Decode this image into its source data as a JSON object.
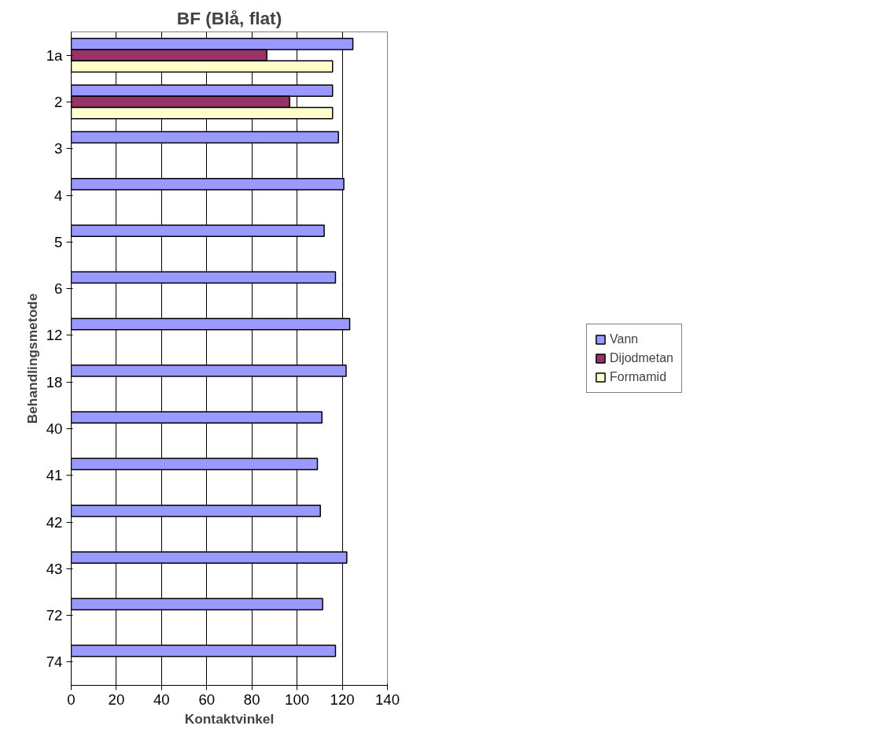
{
  "chart_data": {
    "type": "bar",
    "orientation": "horizontal",
    "title": "BF (Blå, flat)",
    "xlabel": "Kontaktvinkel",
    "ylabel": "Behandlingsmetode",
    "categories": [
      "1a",
      "2",
      "3",
      "4",
      "5",
      "6",
      "12",
      "18",
      "40",
      "41",
      "42",
      "43",
      "72",
      "74"
    ],
    "series": [
      {
        "name": "Vann",
        "color": "#9999ff",
        "values": [
          124.7,
          115.7,
          118.3,
          120.7,
          112.0,
          117.0,
          123.3,
          121.7,
          111.0,
          109.0,
          110.3,
          122.0,
          111.3,
          117.0
        ]
      },
      {
        "name": "Dijodmetan",
        "color": "#993366",
        "values": [
          86.6,
          96.7,
          null,
          null,
          null,
          null,
          null,
          null,
          null,
          null,
          null,
          null,
          null,
          null
        ]
      },
      {
        "name": "Formamid",
        "color": "#ffffcc",
        "values": [
          115.7,
          115.7,
          null,
          null,
          null,
          null,
          null,
          null,
          null,
          null,
          null,
          null,
          null,
          null
        ]
      }
    ],
    "xlim": [
      0,
      140
    ],
    "xticks": [
      0,
      20,
      40,
      60,
      80,
      100,
      120,
      140
    ],
    "grid": "x",
    "legend": "right"
  }
}
